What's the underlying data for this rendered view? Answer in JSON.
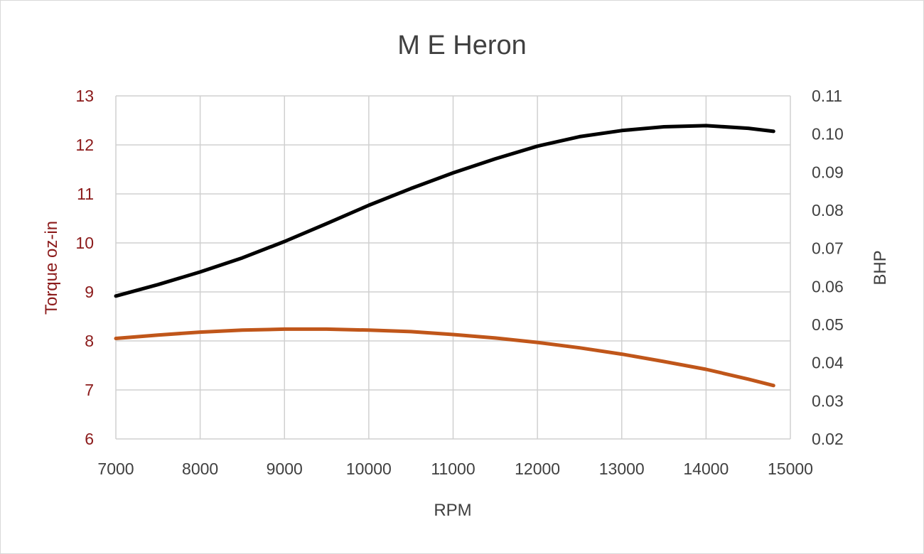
{
  "chart_data": {
    "type": "line",
    "title": "M E Heron",
    "xlabel": "RPM",
    "ylabel_left": "Torque oz-in",
    "ylabel_right": "BHP",
    "xlim": [
      7000,
      15000
    ],
    "ylim_left": [
      6,
      13
    ],
    "ylim_right": [
      0.02,
      0.11
    ],
    "x_ticks": [
      "7000",
      "8000",
      "9000",
      "10000",
      "11000",
      "12000",
      "13000",
      "14000",
      "15000"
    ],
    "y_left_ticks": [
      "6",
      "7",
      "8",
      "9",
      "10",
      "11",
      "12",
      "13"
    ],
    "y_right_ticks": [
      "0.02",
      "0.03",
      "0.04",
      "0.05",
      "0.06",
      "0.07",
      "0.08",
      "0.09",
      "0.10",
      "0.11"
    ],
    "grid": true,
    "colors": {
      "torque": "#c0561a",
      "bhp": "#000000",
      "left_axis_text": "#8b1a1a"
    },
    "series": [
      {
        "axis": "left",
        "x": [
          7000,
          7500,
          8000,
          8500,
          9000,
          9500,
          10000,
          10500,
          11000,
          11500,
          12000,
          12500,
          13000,
          13500,
          14000,
          14500,
          14800
        ],
        "values": [
          8.05,
          8.12,
          8.18,
          8.22,
          8.24,
          8.24,
          8.22,
          8.19,
          8.13,
          8.06,
          7.97,
          7.86,
          7.73,
          7.58,
          7.42,
          7.22,
          7.09
        ]
      },
      {
        "axis": "right",
        "x": [
          7000,
          7500,
          8000,
          8500,
          9000,
          9500,
          10000,
          10500,
          11000,
          11500,
          12000,
          12500,
          13000,
          13500,
          14000,
          14500,
          14800
        ],
        "values": [
          0.0575,
          0.0605,
          0.0638,
          0.0675,
          0.0718,
          0.0765,
          0.0813,
          0.0857,
          0.0898,
          0.0935,
          0.0968,
          0.0993,
          0.1009,
          0.1019,
          0.1022,
          0.1015,
          0.1007
        ]
      }
    ]
  }
}
